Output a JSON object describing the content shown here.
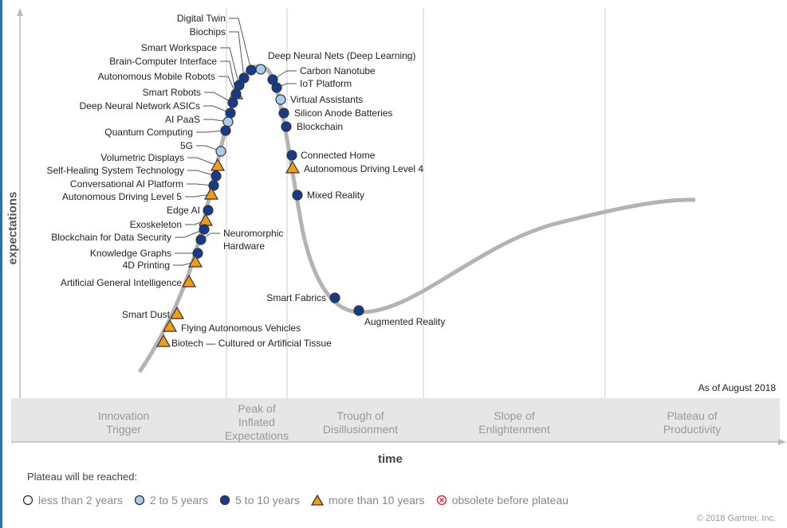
{
  "axes": {
    "y_label": "expectations",
    "x_label": "time"
  },
  "as_of": "As of August 2018",
  "copyright": "© 2018 Gartner, Inc.",
  "phases": [
    [
      "Innovation",
      "Trigger"
    ],
    [
      "Peak of",
      "Inflated",
      "Expectations"
    ],
    [
      "Trough of",
      "Disillusionment"
    ],
    [
      "Slope of",
      "Enlightenment"
    ],
    [
      "Plateau of",
      "Productivity"
    ]
  ],
  "legend": {
    "title": "Plateau will be reached:",
    "items": [
      {
        "label": "less than 2 years",
        "symbol": "circle-white"
      },
      {
        "label": "2 to 5 years",
        "symbol": "circle-lightblue"
      },
      {
        "label": "5 to 10 years",
        "symbol": "circle-darkblue"
      },
      {
        "label": "more than 10 years",
        "symbol": "triangle-orange"
      },
      {
        "label": "obsolete before plateau",
        "symbol": "circle-x-red"
      }
    ]
  },
  "colors": {
    "dark_blue": "#173b8c",
    "light_blue": "#a8cdef",
    "orange": "#f29b16",
    "curve": "#b3b3b3",
    "band": "#e6e6e6",
    "obsolete": "#e0303a"
  },
  "technologies": [
    {
      "name": "Digital Twin",
      "plateau": "5 to 10 years"
    },
    {
      "name": "Biochips",
      "plateau": "5 to 10 years"
    },
    {
      "name": "Smart Workspace",
      "plateau": "5 to 10 years"
    },
    {
      "name": "Brain-Computer Interface",
      "plateau": "more than 10 years"
    },
    {
      "name": "Autonomous Mobile Robots",
      "plateau": "5 to 10 years"
    },
    {
      "name": "Smart Robots",
      "plateau": "5 to 10 years"
    },
    {
      "name": "Deep Neural Network ASICs",
      "plateau": "5 to 10 years"
    },
    {
      "name": "AI PaaS",
      "plateau": "2 to 5 years"
    },
    {
      "name": "Quantum Computing",
      "plateau": "5 to 10 years"
    },
    {
      "name": "5G",
      "plateau": "2 to 5 years"
    },
    {
      "name": "Volumetric Displays",
      "plateau": "more than 10 years"
    },
    {
      "name": "Self-Healing System Technology",
      "plateau": "5 to 10 years"
    },
    {
      "name": "Conversational AI Platform",
      "plateau": "5 to 10 years"
    },
    {
      "name": "Autonomous Driving Level 5",
      "plateau": "more than 10 years"
    },
    {
      "name": "Edge AI",
      "plateau": "5 to 10 years"
    },
    {
      "name": "Exoskeleton",
      "plateau": "more than 10 years"
    },
    {
      "name": "Blockchain for Data Security",
      "plateau": "5 to 10 years"
    },
    {
      "name": "Neuromorphic Hardware",
      "plateau": "5 to 10 years"
    },
    {
      "name": "Knowledge Graphs",
      "plateau": "5 to 10 years"
    },
    {
      "name": "4D Printing",
      "plateau": "more than 10 years"
    },
    {
      "name": "Artificial General Intelligence",
      "plateau": "more than 10 years"
    },
    {
      "name": "Smart Dust",
      "plateau": "more than 10 years"
    },
    {
      "name": "Flying Autonomous Vehicles",
      "plateau": "more than 10 years"
    },
    {
      "name": "Biotech — Cultured or Artificial Tissue",
      "plateau": "more than 10 years"
    },
    {
      "name": "Deep Neural Nets (Deep Learning)",
      "plateau": "2 to 5 years"
    },
    {
      "name": "Carbon Nanotube",
      "plateau": "5 to 10 years"
    },
    {
      "name": "IoT Platform",
      "plateau": "5 to 10 years"
    },
    {
      "name": "Virtual Assistants",
      "plateau": "2 to 5 years"
    },
    {
      "name": "Silicon Anode Batteries",
      "plateau": "5 to 10 years"
    },
    {
      "name": "Blockchain",
      "plateau": "5 to 10 years"
    },
    {
      "name": "Connected Home",
      "plateau": "5 to 10 years"
    },
    {
      "name": "Autonomous Driving Level 4",
      "plateau": "more than 10 years"
    },
    {
      "name": "Mixed Reality",
      "plateau": "5 to 10 years"
    },
    {
      "name": "Smart Fabrics",
      "plateau": "5 to 10 years"
    },
    {
      "name": "Augmented Reality",
      "plateau": "5 to 10 years"
    }
  ]
}
